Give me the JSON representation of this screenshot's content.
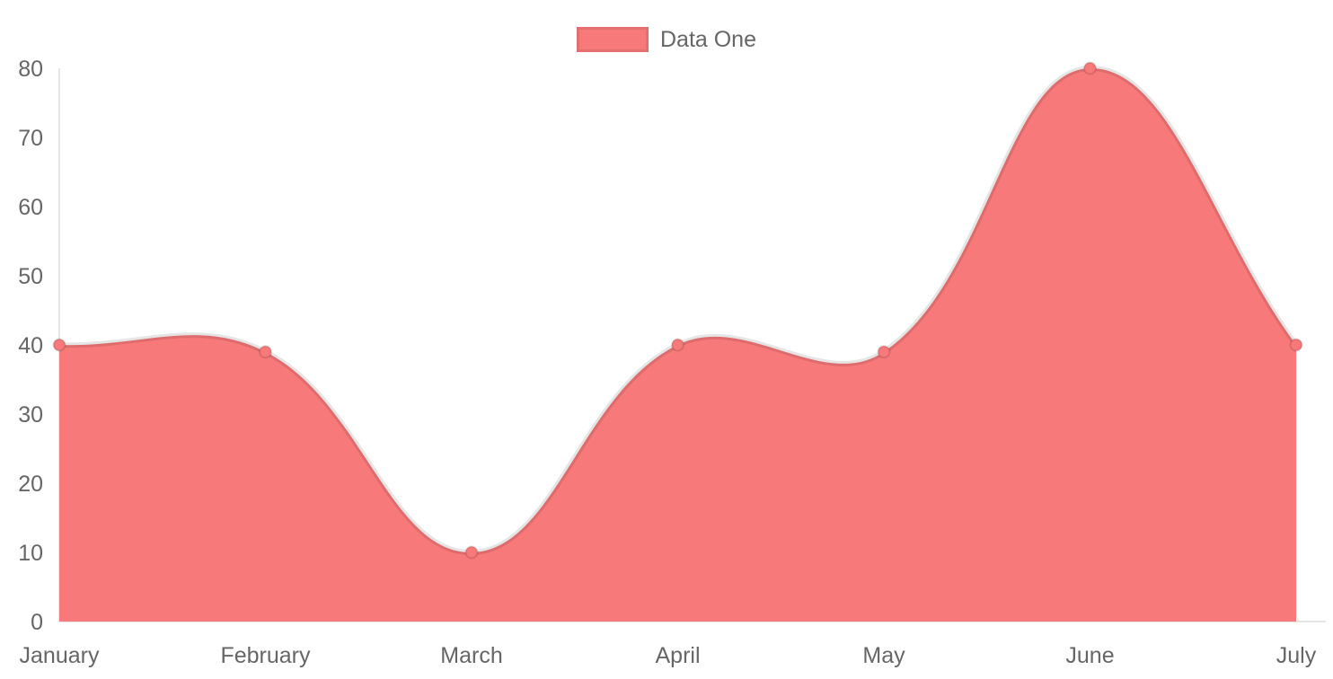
{
  "chart_data": {
    "type": "area",
    "title": "",
    "categories": [
      "January",
      "February",
      "March",
      "April",
      "May",
      "June",
      "July"
    ],
    "series": [
      {
        "name": "Data One",
        "values": [
          40,
          39,
          10,
          40,
          39,
          80,
          40
        ],
        "fill_color": "#f87979",
        "border_color": "rgba(0,0,0,0.1)",
        "point_fill_color": "#f87979",
        "point_border_color": "rgba(0,0,0,0.12)"
      }
    ],
    "xlabel": "",
    "ylabel": "",
    "ylim": [
      0,
      80
    ],
    "y_ticks": [
      0,
      10,
      20,
      30,
      40,
      50,
      60,
      70,
      80
    ],
    "grid": false,
    "legend_position": "top",
    "axis_line_color": "rgba(0,0,0,0.1)",
    "tick_text_color": "#666666",
    "line_tension": 0.4
  }
}
